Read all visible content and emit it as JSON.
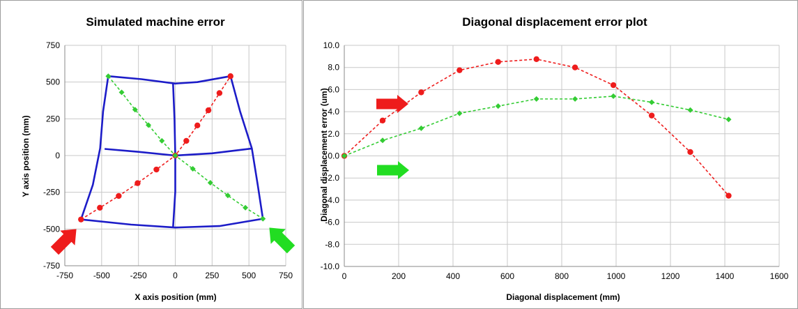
{
  "chart_data": [
    {
      "type": "scatter",
      "title": "Simulated machine error",
      "xlabel": "X axis position (mm)",
      "ylabel": "Y axis position (mm)",
      "xlim": [
        -750,
        750
      ],
      "ylim": [
        -750,
        750
      ],
      "xticks": [
        -750,
        -500,
        -250,
        0,
        250,
        500,
        750
      ],
      "yticks": [
        -750,
        -500,
        -250,
        0,
        250,
        500,
        750
      ],
      "xtick_labels": [
        "-750",
        "-500",
        "-250",
        "0",
        "250",
        "500",
        "750"
      ],
      "ytick_labels": [
        "-750",
        "-500",
        "-250",
        "0",
        "250",
        "500",
        "750"
      ],
      "grid": true,
      "grid_lines": [
        [
          [
            -455,
            540
          ],
          [
            -230,
            520
          ],
          [
            0,
            490
          ],
          [
            150,
            500
          ],
          [
            375,
            540
          ]
        ],
        [
          [
            -480,
            45
          ],
          [
            -250,
            25
          ],
          [
            0,
            0
          ],
          [
            250,
            15
          ],
          [
            520,
            48
          ]
        ],
        [
          [
            -640,
            -435
          ],
          [
            -300,
            -470
          ],
          [
            0,
            -490
          ],
          [
            300,
            -480
          ],
          [
            595,
            -430
          ]
        ],
        [
          [
            -455,
            540
          ],
          [
            -490,
            300
          ],
          [
            -510,
            50
          ],
          [
            -560,
            -200
          ],
          [
            -640,
            -435
          ]
        ],
        [
          [
            -15,
            490
          ],
          [
            -5,
            245
          ],
          [
            0,
            0
          ],
          [
            0,
            -245
          ],
          [
            -15,
            -490
          ]
        ],
        [
          [
            375,
            540
          ],
          [
            440,
            300
          ],
          [
            520,
            48
          ],
          [
            560,
            -200
          ],
          [
            595,
            -430
          ]
        ]
      ],
      "series": [
        {
          "color": "#ee1c1c",
          "x": [
            -640,
            -512,
            -384,
            -256,
            -128,
            0,
            75,
            150,
            225,
            300,
            375
          ],
          "y": [
            -435,
            -355,
            -275,
            -188,
            -95,
            0,
            100,
            205,
            308,
            425,
            540
          ]
        },
        {
          "color": "#33cc33",
          "x": [
            -455,
            -364,
            -273,
            -182,
            -91,
            0,
            119,
            238,
            357,
            476,
            595
          ],
          "y": [
            540,
            430,
            312,
            207,
            100,
            0,
            -90,
            -185,
            -272,
            -355,
            -430
          ]
        }
      ],
      "arrows": [
        {
          "color": "#ee1c1c",
          "direction": "up-right"
        },
        {
          "color": "#22dd22",
          "direction": "up-left"
        }
      ],
      "grid_color": "#1c1cc8"
    },
    {
      "type": "line",
      "title": "Diagonal displacement error plot",
      "xlabel": "Diagonal displacement (mm)",
      "ylabel": "Diagonal displacement error (um)",
      "xlim": [
        0,
        1600
      ],
      "ylim": [
        -10,
        10
      ],
      "xticks": [
        0,
        200,
        400,
        600,
        800,
        1000,
        1200,
        1400,
        1600
      ],
      "yticks": [
        -10,
        -8,
        -6,
        -4,
        -2,
        0,
        2,
        4,
        6,
        8,
        10
      ],
      "xtick_labels": [
        "0",
        "200",
        "400",
        "600",
        "800",
        "1000",
        "1200",
        "1400",
        "1600"
      ],
      "ytick_labels": [
        "-10.0",
        "-8.0",
        "-6.0",
        "-4.0",
        "-2.0",
        "0.0",
        "2.0",
        "4.0",
        "6.0",
        "8.0",
        "10.0"
      ],
      "grid": true,
      "series": [
        {
          "color": "#ee1c1c",
          "x": [
            0,
            141,
            283,
            424,
            566,
            707,
            849,
            990,
            1131,
            1273,
            1414
          ],
          "y": [
            0,
            3.2,
            5.75,
            7.75,
            8.5,
            8.75,
            8.0,
            6.4,
            3.65,
            0.35,
            -3.6
          ]
        },
        {
          "color": "#33cc33",
          "x": [
            0,
            141,
            283,
            424,
            566,
            707,
            849,
            990,
            1131,
            1273,
            1414
          ],
          "y": [
            0,
            1.4,
            2.5,
            3.85,
            4.5,
            5.15,
            5.15,
            5.4,
            4.85,
            4.15,
            3.3
          ]
        }
      ],
      "arrows": [
        {
          "color": "#ee1c1c",
          "direction": "right"
        },
        {
          "color": "#22dd22",
          "direction": "right"
        }
      ]
    }
  ]
}
